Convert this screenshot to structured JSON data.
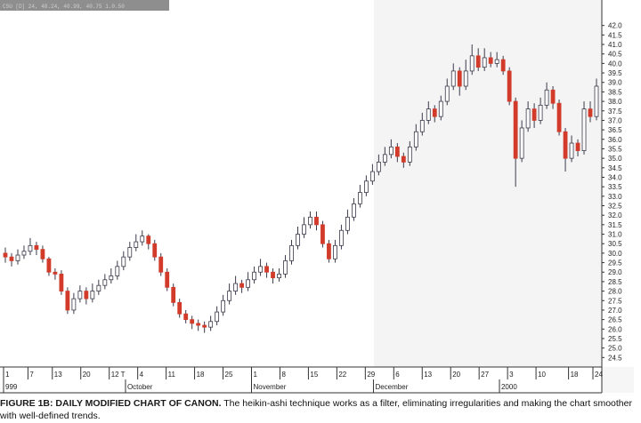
{
  "chart_header": "CSU [D] 24, 48.24, 40.99, 40.75 1.0.50",
  "caption": {
    "label": "FIGURE 1B: DAILY MODIFIED CHART OF CANON.",
    "text": "The heikin-ashi technique works as a filter, eliminating irregularities and making the chart smoother with well-defined trends."
  },
  "colors": {
    "up": "#ffffff",
    "up_stroke": "#3a3a4a",
    "down": "#d23a2a",
    "wick": "#3a3a4a",
    "background": "#ffffff"
  },
  "chart_data": {
    "type": "candlestick",
    "title": "",
    "xlabel": "",
    "ylabel": "",
    "ylim": [
      24,
      42.5
    ],
    "y_ticks": [
      "42.0",
      "41.5",
      "41.0",
      "40.5",
      "40.0",
      "39.5",
      "39.0",
      "38.5",
      "38.0",
      "37.5",
      "37.0",
      "36.5",
      "36.0",
      "35.5",
      "35.0",
      "34.5",
      "34.0",
      "33.5",
      "33.0",
      "32.5",
      "32.0",
      "31.5",
      "31.0",
      "30.5",
      "30.0",
      "29.5",
      "29.0",
      "28.5",
      "28.0",
      "27.5",
      "27.0",
      "26.5",
      "26.0",
      "25.5",
      "25.0",
      "24.5"
    ],
    "x_ticks": [
      "1",
      "7",
      "13",
      "20",
      "12 T",
      "4",
      "11",
      "18",
      "25",
      "1",
      "8",
      "15",
      "22",
      "29",
      "6",
      "13",
      "20",
      "27",
      "3",
      "10",
      "18",
      "24"
    ],
    "month_labels": [
      "999",
      "October",
      "November",
      "December",
      "2000"
    ],
    "date_ticks": [
      "1999-09-01",
      "1999-09-07",
      "1999-09-13",
      "1999-09-20",
      "1999-09-27",
      "1999-10-04",
      "1999-10-11",
      "1999-10-18",
      "1999-10-25",
      "1999-11-01",
      "1999-11-08",
      "1999-11-15",
      "1999-11-22",
      "1999-11-29",
      "1999-12-06",
      "1999-12-13",
      "1999-12-20",
      "1999-12-27",
      "2000-01-03",
      "2000-01-10",
      "2000-01-18",
      "2000-01-24"
    ],
    "series": [
      {
        "values": [
          {
            "o": 30.0,
            "c": 29.8,
            "h": 30.3,
            "l": 29.5
          },
          {
            "o": 29.8,
            "c": 29.6,
            "h": 30.0,
            "l": 29.3
          },
          {
            "o": 29.6,
            "c": 29.9,
            "h": 30.2,
            "l": 29.4
          },
          {
            "o": 29.9,
            "c": 30.1,
            "h": 30.4,
            "l": 29.7
          },
          {
            "o": 30.1,
            "c": 30.4,
            "h": 30.8,
            "l": 29.9
          },
          {
            "o": 30.4,
            "c": 30.2,
            "h": 30.6,
            "l": 29.9
          },
          {
            "o": 30.2,
            "c": 29.7,
            "h": 30.4,
            "l": 29.5
          },
          {
            "o": 29.7,
            "c": 29.0,
            "h": 29.8,
            "l": 28.8
          },
          {
            "o": 29.0,
            "c": 28.9,
            "h": 29.2,
            "l": 28.6
          },
          {
            "o": 28.9,
            "c": 28.0,
            "h": 29.1,
            "l": 27.8
          },
          {
            "o": 28.0,
            "c": 27.0,
            "h": 28.2,
            "l": 26.8
          },
          {
            "o": 27.0,
            "c": 27.6,
            "h": 27.9,
            "l": 26.8
          },
          {
            "o": 27.6,
            "c": 28.0,
            "h": 28.3,
            "l": 27.4
          },
          {
            "o": 28.0,
            "c": 27.6,
            "h": 28.2,
            "l": 27.3
          },
          {
            "o": 27.6,
            "c": 28.0,
            "h": 28.4,
            "l": 27.4
          },
          {
            "o": 28.0,
            "c": 28.3,
            "h": 28.6,
            "l": 27.8
          },
          {
            "o": 28.3,
            "c": 28.6,
            "h": 28.9,
            "l": 28.1
          },
          {
            "o": 28.6,
            "c": 28.8,
            "h": 29.2,
            "l": 28.4
          },
          {
            "o": 28.8,
            "c": 29.3,
            "h": 29.6,
            "l": 28.6
          },
          {
            "o": 29.3,
            "c": 29.8,
            "h": 30.1,
            "l": 29.1
          },
          {
            "o": 29.8,
            "c": 30.3,
            "h": 30.6,
            "l": 29.6
          },
          {
            "o": 30.3,
            "c": 30.6,
            "h": 31.0,
            "l": 30.1
          },
          {
            "o": 30.6,
            "c": 30.9,
            "h": 31.2,
            "l": 30.4
          },
          {
            "o": 30.9,
            "c": 30.5,
            "h": 31.0,
            "l": 30.2
          },
          {
            "o": 30.5,
            "c": 29.8,
            "h": 30.7,
            "l": 29.6
          },
          {
            "o": 29.8,
            "c": 29.0,
            "h": 30.0,
            "l": 28.8
          },
          {
            "o": 29.0,
            "c": 28.2,
            "h": 29.2,
            "l": 28.0
          },
          {
            "o": 28.2,
            "c": 27.4,
            "h": 28.4,
            "l": 27.2
          },
          {
            "o": 27.4,
            "c": 26.8,
            "h": 27.6,
            "l": 26.6
          },
          {
            "o": 26.8,
            "c": 26.5,
            "h": 27.0,
            "l": 26.3
          },
          {
            "o": 26.5,
            "c": 26.3,
            "h": 26.7,
            "l": 26.0
          },
          {
            "o": 26.3,
            "c": 26.2,
            "h": 26.5,
            "l": 25.9
          },
          {
            "o": 26.2,
            "c": 26.1,
            "h": 26.4,
            "l": 25.8
          },
          {
            "o": 26.1,
            "c": 26.4,
            "h": 26.7,
            "l": 25.9
          },
          {
            "o": 26.4,
            "c": 26.9,
            "h": 27.2,
            "l": 26.2
          },
          {
            "o": 26.9,
            "c": 27.5,
            "h": 27.8,
            "l": 26.7
          },
          {
            "o": 27.5,
            "c": 28.0,
            "h": 28.4,
            "l": 27.3
          },
          {
            "o": 28.0,
            "c": 28.4,
            "h": 28.8,
            "l": 27.8
          },
          {
            "o": 28.4,
            "c": 28.2,
            "h": 28.6,
            "l": 27.9
          },
          {
            "o": 28.2,
            "c": 28.6,
            "h": 29.0,
            "l": 28.0
          },
          {
            "o": 28.6,
            "c": 29.0,
            "h": 29.3,
            "l": 28.4
          },
          {
            "o": 29.0,
            "c": 29.3,
            "h": 29.7,
            "l": 28.8
          },
          {
            "o": 29.3,
            "c": 29.0,
            "h": 29.5,
            "l": 28.7
          },
          {
            "o": 29.0,
            "c": 28.7,
            "h": 29.2,
            "l": 28.4
          },
          {
            "o": 28.7,
            "c": 28.9,
            "h": 29.2,
            "l": 28.5
          },
          {
            "o": 28.9,
            "c": 29.6,
            "h": 29.9,
            "l": 28.7
          },
          {
            "o": 29.6,
            "c": 30.4,
            "h": 30.7,
            "l": 29.4
          },
          {
            "o": 30.4,
            "c": 31.0,
            "h": 31.4,
            "l": 30.2
          },
          {
            "o": 31.0,
            "c": 31.5,
            "h": 31.9,
            "l": 30.8
          },
          {
            "o": 31.5,
            "c": 31.9,
            "h": 32.2,
            "l": 31.3
          },
          {
            "o": 31.9,
            "c": 31.5,
            "h": 32.2,
            "l": 31.2
          },
          {
            "o": 31.5,
            "c": 30.5,
            "h": 31.7,
            "l": 30.3
          },
          {
            "o": 30.5,
            "c": 29.7,
            "h": 30.7,
            "l": 29.5
          },
          {
            "o": 29.7,
            "c": 30.4,
            "h": 30.7,
            "l": 29.5
          },
          {
            "o": 30.4,
            "c": 31.2,
            "h": 31.5,
            "l": 30.2
          },
          {
            "o": 31.2,
            "c": 31.9,
            "h": 32.3,
            "l": 31.0
          },
          {
            "o": 31.9,
            "c": 32.6,
            "h": 32.9,
            "l": 31.7
          },
          {
            "o": 32.6,
            "c": 33.2,
            "h": 33.6,
            "l": 32.4
          },
          {
            "o": 33.2,
            "c": 33.8,
            "h": 34.1,
            "l": 33.0
          },
          {
            "o": 33.8,
            "c": 34.3,
            "h": 34.7,
            "l": 33.6
          },
          {
            "o": 34.3,
            "c": 34.8,
            "h": 35.2,
            "l": 34.1
          },
          {
            "o": 34.8,
            "c": 35.2,
            "h": 35.6,
            "l": 34.6
          },
          {
            "o": 35.2,
            "c": 35.6,
            "h": 36.0,
            "l": 35.0
          },
          {
            "o": 35.6,
            "c": 35.1,
            "h": 35.8,
            "l": 34.8
          },
          {
            "o": 35.1,
            "c": 34.8,
            "h": 35.3,
            "l": 34.5
          },
          {
            "o": 34.8,
            "c": 35.6,
            "h": 35.9,
            "l": 34.6
          },
          {
            "o": 35.6,
            "c": 36.4,
            "h": 36.8,
            "l": 35.4
          },
          {
            "o": 36.4,
            "c": 37.0,
            "h": 37.4,
            "l": 36.2
          },
          {
            "o": 37.0,
            "c": 37.6,
            "h": 38.0,
            "l": 36.8
          },
          {
            "o": 37.6,
            "c": 37.2,
            "h": 37.8,
            "l": 36.9
          },
          {
            "o": 37.2,
            "c": 38.0,
            "h": 38.3,
            "l": 37.0
          },
          {
            "o": 38.0,
            "c": 38.8,
            "h": 39.2,
            "l": 37.8
          },
          {
            "o": 38.8,
            "c": 39.6,
            "h": 40.0,
            "l": 38.6
          },
          {
            "o": 39.6,
            "c": 38.8,
            "h": 39.8,
            "l": 38.3
          },
          {
            "o": 38.8,
            "c": 39.6,
            "h": 40.2,
            "l": 38.6
          },
          {
            "o": 39.6,
            "c": 40.4,
            "h": 41.0,
            "l": 39.4
          },
          {
            "o": 40.4,
            "c": 39.8,
            "h": 40.8,
            "l": 39.6
          },
          {
            "o": 39.8,
            "c": 40.3,
            "h": 40.8,
            "l": 39.6
          },
          {
            "o": 40.3,
            "c": 40.0,
            "h": 40.6,
            "l": 39.8
          },
          {
            "o": 40.0,
            "c": 40.2,
            "h": 40.6,
            "l": 39.8
          },
          {
            "o": 40.2,
            "c": 39.6,
            "h": 40.4,
            "l": 39.4
          },
          {
            "o": 39.6,
            "c": 38.0,
            "h": 39.8,
            "l": 37.8
          },
          {
            "o": 38.0,
            "c": 35.0,
            "h": 38.2,
            "l": 33.5
          },
          {
            "o": 35.0,
            "c": 36.6,
            "h": 37.0,
            "l": 34.8
          },
          {
            "o": 36.6,
            "c": 37.6,
            "h": 38.0,
            "l": 36.4
          },
          {
            "o": 37.6,
            "c": 37.0,
            "h": 37.9,
            "l": 36.6
          },
          {
            "o": 37.0,
            "c": 37.8,
            "h": 38.2,
            "l": 36.8
          },
          {
            "o": 37.8,
            "c": 38.6,
            "h": 39.0,
            "l": 37.6
          },
          {
            "o": 38.6,
            "c": 37.9,
            "h": 38.8,
            "l": 37.6
          },
          {
            "o": 37.9,
            "c": 36.4,
            "h": 38.1,
            "l": 36.2
          },
          {
            "o": 36.4,
            "c": 35.0,
            "h": 36.6,
            "l": 34.3
          },
          {
            "o": 35.0,
            "c": 35.8,
            "h": 36.2,
            "l": 34.8
          },
          {
            "o": 35.8,
            "c": 35.4,
            "h": 36.0,
            "l": 35.1
          },
          {
            "o": 35.4,
            "c": 37.6,
            "h": 38.0,
            "l": 35.2
          },
          {
            "o": 37.6,
            "c": 37.2,
            "h": 38.0,
            "l": 36.9
          },
          {
            "o": 37.2,
            "c": 38.8,
            "h": 39.2,
            "l": 37.0
          }
        ]
      }
    ]
  }
}
